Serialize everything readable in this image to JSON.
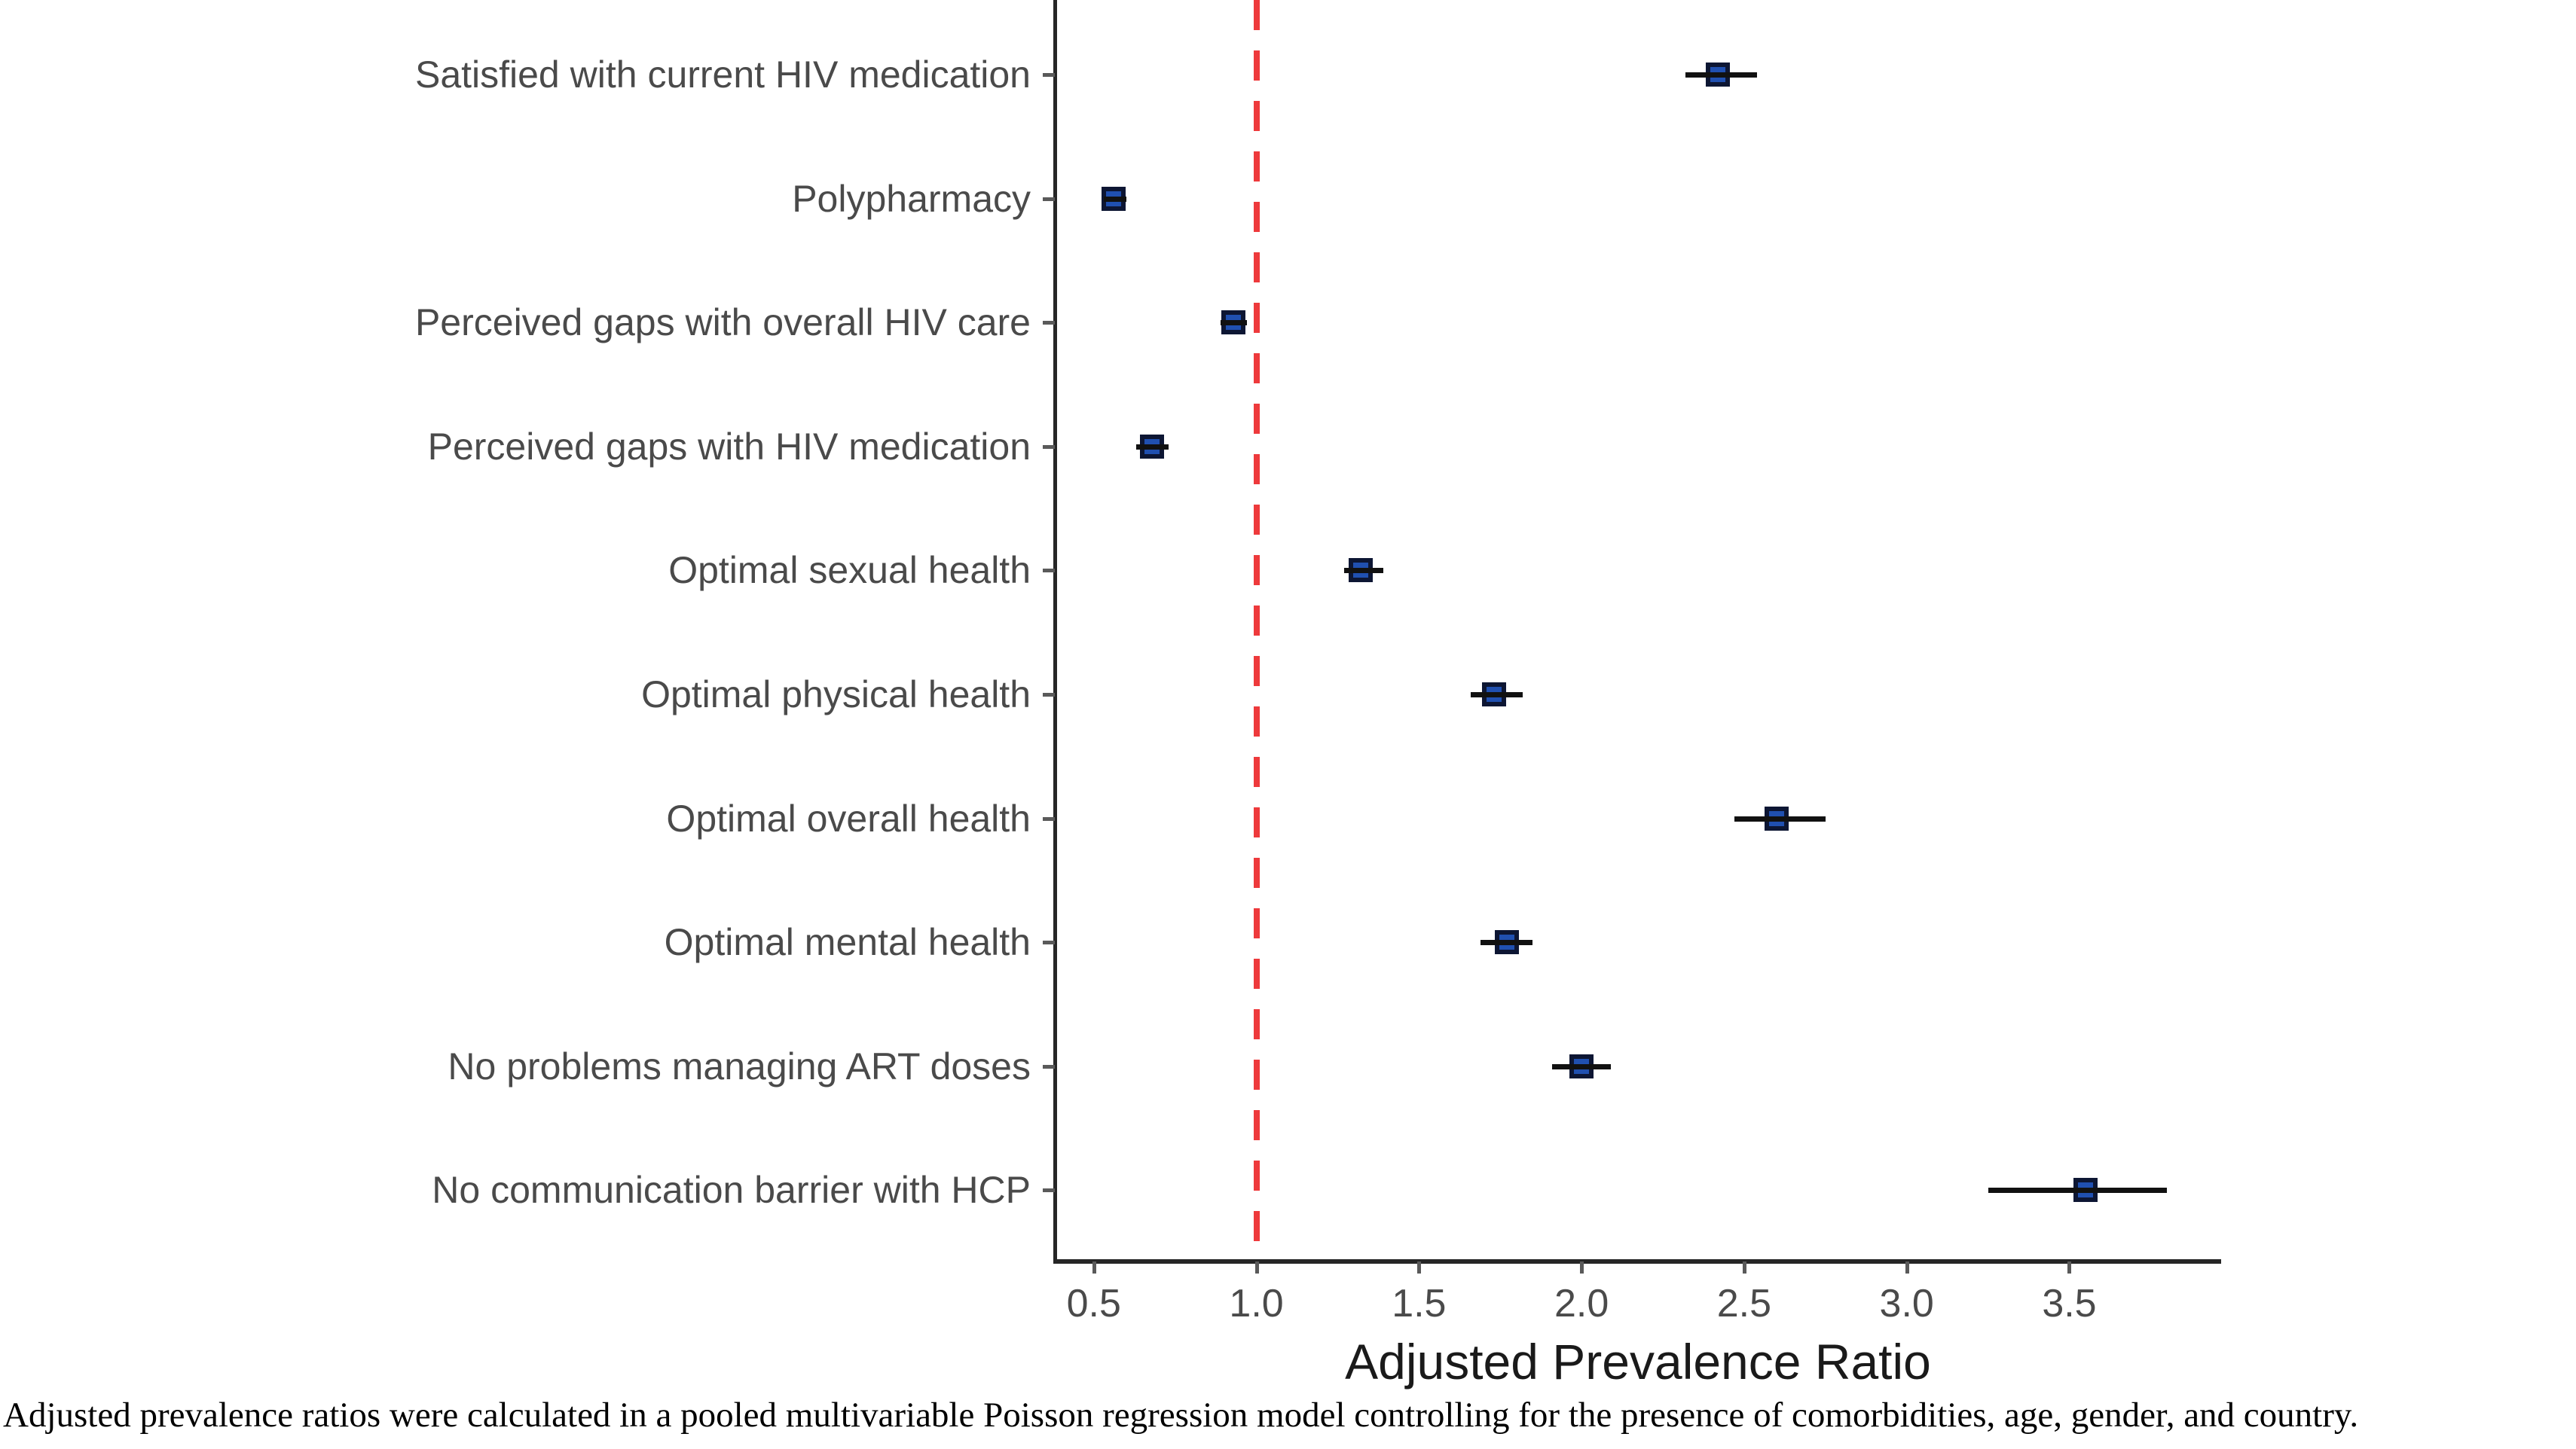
{
  "chart_data": {
    "type": "scatter",
    "subtype": "forest-dot-whisker",
    "title": "",
    "xlabel": "Adjusted Prevalence Ratio",
    "ylabel": "",
    "x_ticks": [
      "0.5",
      "1.0",
      "1.5",
      "2.0",
      "2.5",
      "3.0",
      "3.5"
    ],
    "x_tick_values": [
      0.5,
      1.0,
      1.5,
      2.0,
      2.5,
      3.0,
      3.5
    ],
    "xlim": [
      0.38,
      3.96
    ],
    "reference_line_x": 1.0,
    "grid": false,
    "legend": false,
    "points": [
      {
        "label": "Satisfied with current HIV medication",
        "apr": 2.42,
        "ci_low": 2.32,
        "ci_high": 2.54
      },
      {
        "label": "Polypharmacy",
        "apr": 0.56,
        "ci_low": 0.53,
        "ci_high": 0.6
      },
      {
        "label": "Perceived gaps with overall HIV care",
        "apr": 0.93,
        "ci_low": 0.89,
        "ci_high": 0.97
      },
      {
        "label": "Perceived gaps with HIV medication",
        "apr": 0.68,
        "ci_low": 0.63,
        "ci_high": 0.73
      },
      {
        "label": "Optimal sexual health",
        "apr": 1.32,
        "ci_low": 1.27,
        "ci_high": 1.39
      },
      {
        "label": "Optimal physical health",
        "apr": 1.73,
        "ci_low": 1.66,
        "ci_high": 1.82
      },
      {
        "label": "Optimal overall health",
        "apr": 2.6,
        "ci_low": 2.47,
        "ci_high": 2.75
      },
      {
        "label": "Optimal mental health",
        "apr": 1.77,
        "ci_low": 1.69,
        "ci_high": 1.85
      },
      {
        "label": "No problems managing ART doses",
        "apr": 2.0,
        "ci_low": 1.91,
        "ci_high": 2.09
      },
      {
        "label": "No communication barrier with HCP",
        "apr": 3.55,
        "ci_low": 3.25,
        "ci_high": 3.8
      }
    ]
  },
  "caption": "Adjusted prevalence ratios were calculated in a pooled multivariable Poisson regression model controlling for the presence of comorbidities, age, gender, and country.",
  "colors": {
    "marker_fill": "#2050b0",
    "marker_border": "#0d1633",
    "whisker": "#111111",
    "reference_line": "#ec2427",
    "axis_line": "#262626",
    "tick_label": "#4a4a4a",
    "category_label": "#4a4a4a",
    "axis_title": "#1a1a1a",
    "background": "#ffffff"
  }
}
